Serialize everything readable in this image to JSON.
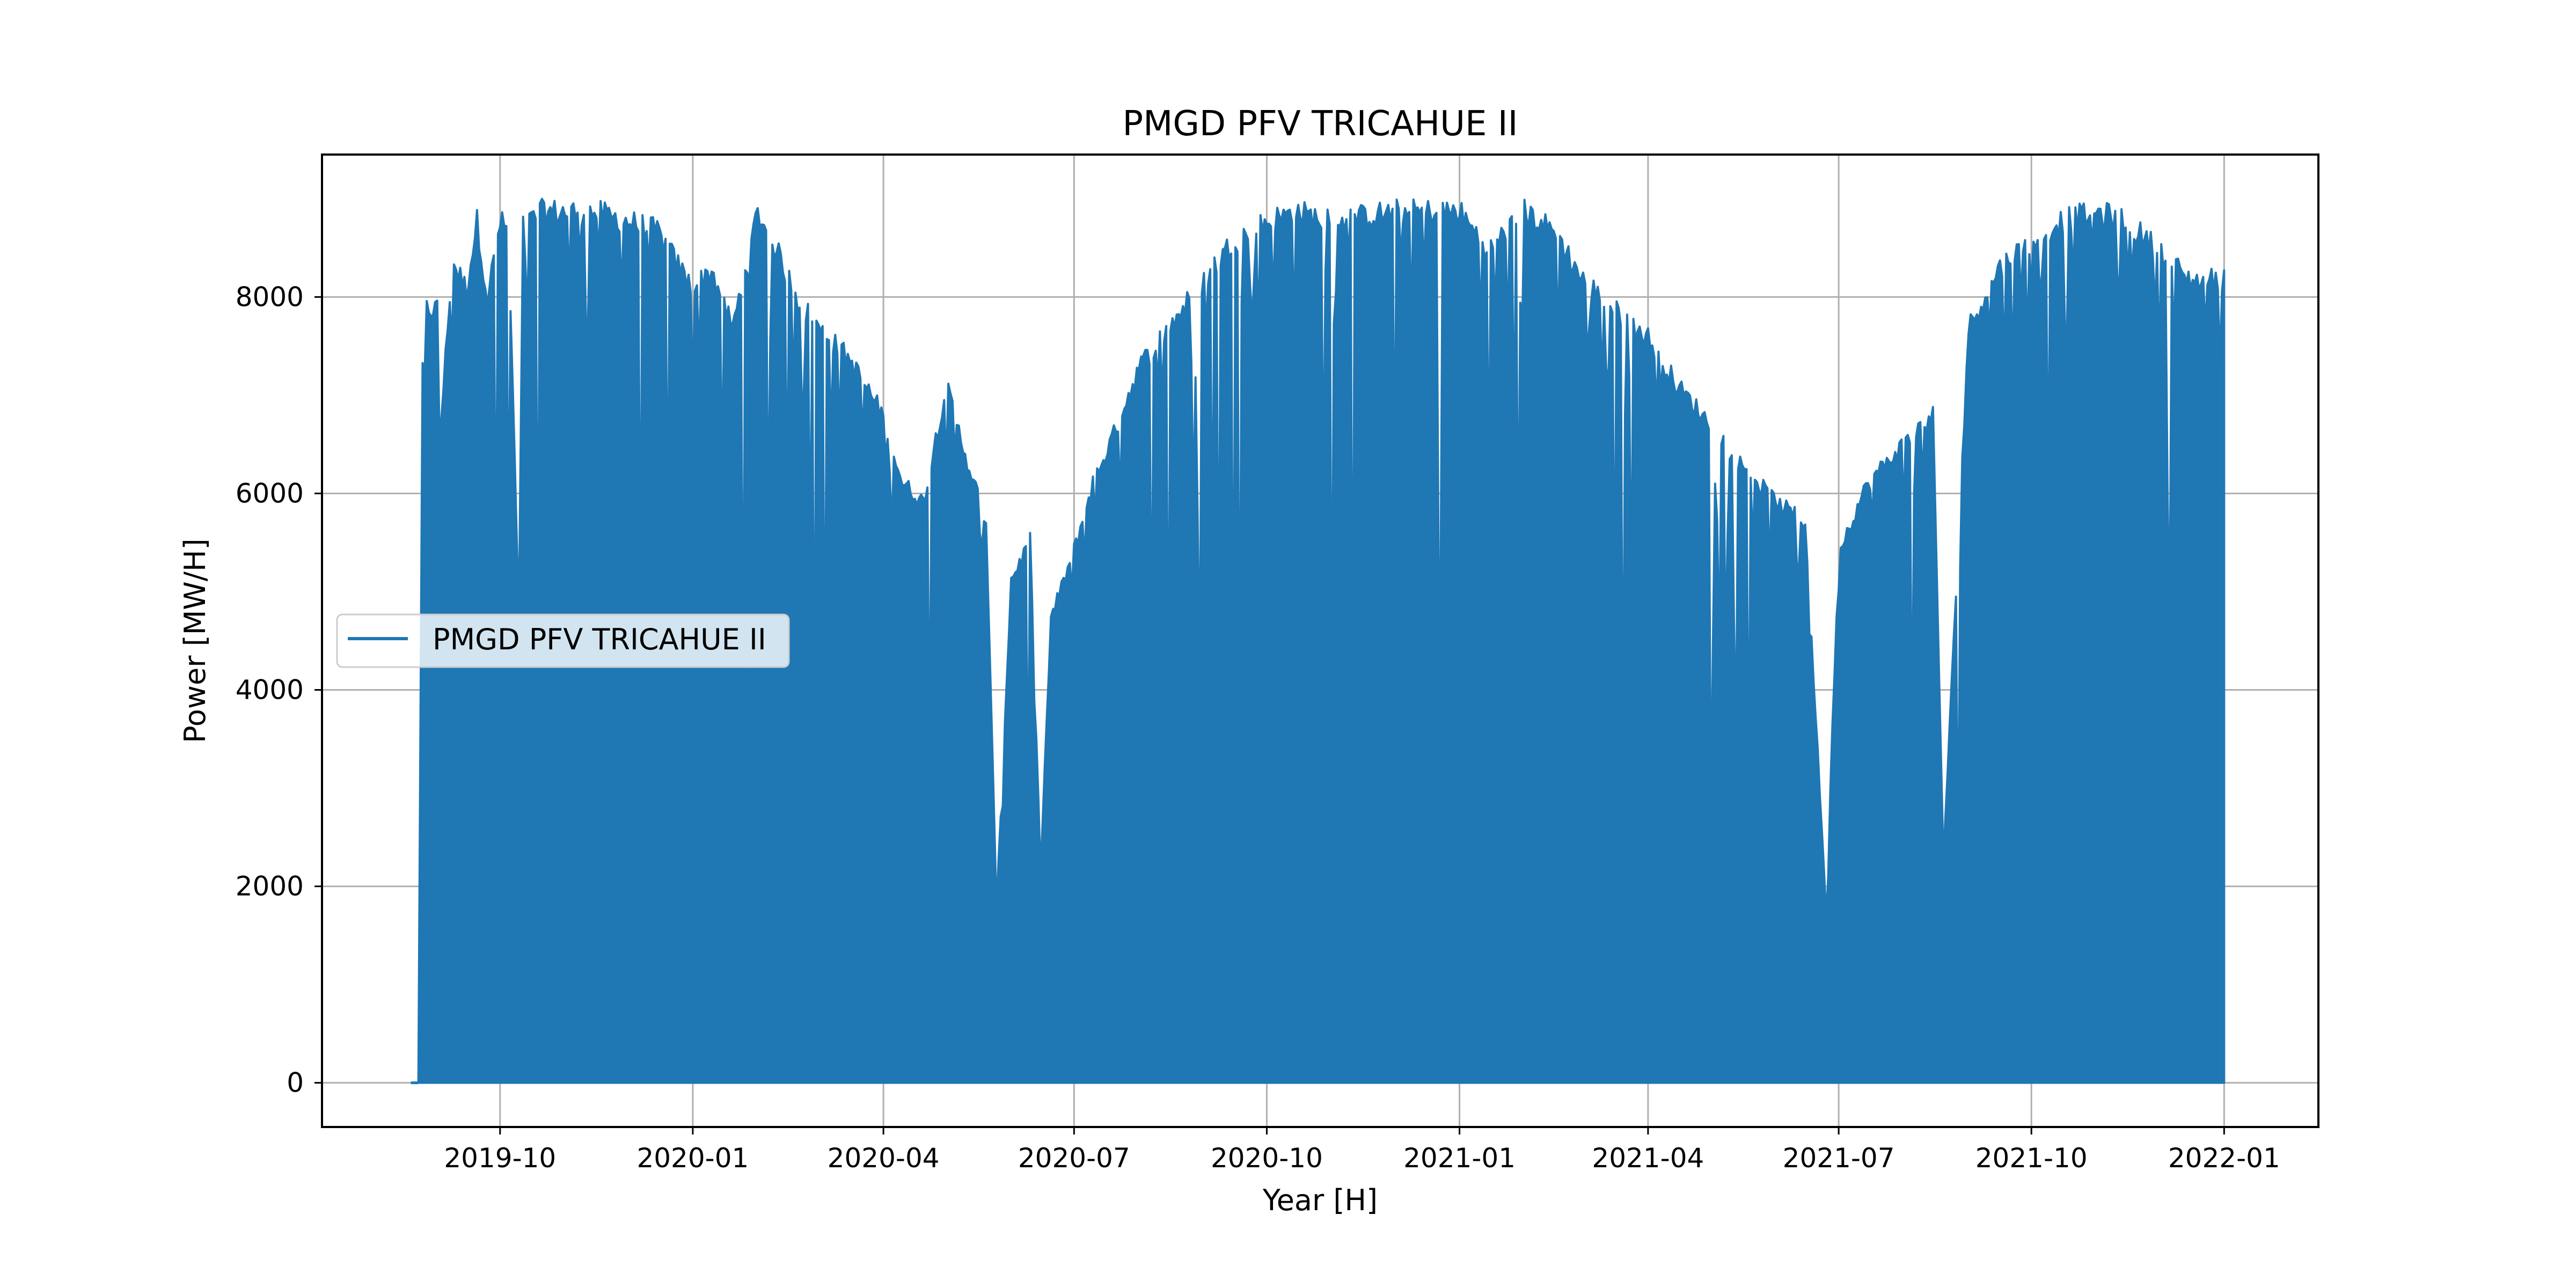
{
  "chart_data": {
    "type": "area",
    "title": "PMGD PFV TRICAHUE II",
    "xlabel": "Year [H]",
    "ylabel": "Power [MW/H]",
    "x_ticks": [
      "2019-10",
      "2020-01",
      "2020-04",
      "2020-07",
      "2020-10",
      "2021-01",
      "2021-04",
      "2021-07",
      "2021-10",
      "2022-01"
    ],
    "y_ticks": [
      "0",
      "2000",
      "4000",
      "6000",
      "8000"
    ],
    "xlim": [
      "2019-07-08",
      "2022-02-15"
    ],
    "ylim": [
      -450,
      9450
    ],
    "grid": true,
    "legend_position": "center-left",
    "series": [
      {
        "name": "PMGD PFV TRICAHUE II",
        "color": "#1f77b4",
        "x_start": "2019-08-23",
        "x_end": "2022-01-01",
        "envelope": {
          "x": [
            "2019-08-23",
            "2019-08-25",
            "2019-08-27",
            "2019-09-01",
            "2019-09-03",
            "2019-09-06",
            "2019-09-08",
            "2019-09-15",
            "2019-09-20",
            "2019-09-25",
            "2019-10-01",
            "2019-10-05",
            "2019-10-10",
            "2019-10-12",
            "2019-10-16",
            "2019-10-20",
            "2019-11-01",
            "2019-11-15",
            "2019-12-01",
            "2019-12-15",
            "2020-01-01",
            "2020-01-10",
            "2020-01-20",
            "2020-01-25",
            "2020-02-01",
            "2020-02-10",
            "2020-02-20",
            "2020-03-01",
            "2020-03-15",
            "2020-04-01",
            "2020-04-10",
            "2020-04-20",
            "2020-05-01",
            "2020-05-10",
            "2020-05-20",
            "2020-05-25",
            "2020-06-01",
            "2020-06-10",
            "2020-06-15",
            "2020-06-20",
            "2020-07-01",
            "2020-07-10",
            "2020-07-20",
            "2020-08-01",
            "2020-08-15",
            "2020-09-01",
            "2020-09-15",
            "2020-10-01",
            "2020-10-15",
            "2020-11-01",
            "2020-12-01",
            "2021-01-01",
            "2021-01-15",
            "2021-02-01",
            "2021-02-15",
            "2021-03-01",
            "2021-03-15",
            "2021-04-01",
            "2021-04-15",
            "2021-05-01",
            "2021-05-15",
            "2021-06-01",
            "2021-06-15",
            "2021-06-25",
            "2021-07-01",
            "2021-07-15",
            "2021-08-01",
            "2021-08-15",
            "2021-08-20",
            "2021-09-01",
            "2021-09-15",
            "2021-10-01",
            "2021-10-15",
            "2021-11-01",
            "2021-11-15",
            "2021-12-01",
            "2021-12-15",
            "2022-01-01"
          ],
          "y": [
            0,
            7400,
            8000,
            8000,
            6900,
            7800,
            8500,
            8200,
            8900,
            8100,
            8900,
            8800,
            4800,
            8900,
            8900,
            9000,
            9000,
            9000,
            8900,
            8800,
            8200,
            8400,
            7800,
            8300,
            9000,
            8600,
            8100,
            7800,
            7500,
            6900,
            6200,
            6000,
            7200,
            6500,
            5800,
            1800,
            5200,
            5600,
            2200,
            4800,
            5500,
            6200,
            6700,
            7400,
            7800,
            8300,
            8700,
            8900,
            9000,
            8900,
            9000,
            9000,
            8600,
            9000,
            8800,
            8300,
            8000,
            7700,
            7200,
            6800,
            6400,
            6000,
            5800,
            1800,
            5500,
            6200,
            6600,
            6900,
            2300,
            7800,
            8400,
            8700,
            8900,
            9000,
            8900,
            8600,
            8300,
            8300
          ]
        }
      }
    ]
  }
}
